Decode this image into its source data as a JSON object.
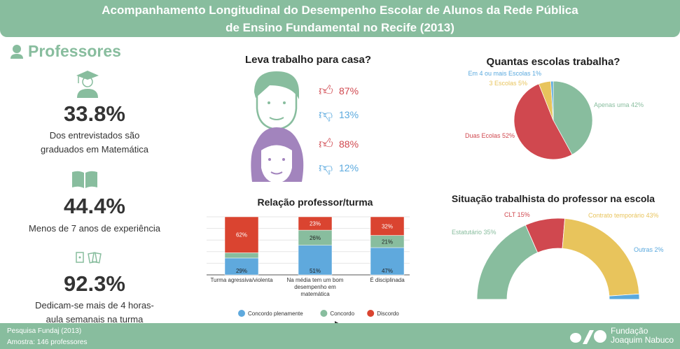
{
  "header": {
    "title_line1": "Acompanhamento Longitudinal do Desempenho Escolar de Alunos da Rede Pública",
    "title_line2": "de Ensino Fundamental no Recife (2013)"
  },
  "section": {
    "title": "Professores",
    "icon": "person-icon"
  },
  "stats": [
    {
      "value": "33.8%",
      "desc": "Dos entrevistados são graduados em Matemática",
      "icon": "graduate-icon"
    },
    {
      "value": "44.4%",
      "desc": "Menos de 7 anos de experiência",
      "icon": "book-icon"
    },
    {
      "value": "92.3%",
      "desc": "Dedicam-se mais de 4 horas-aula semanais na turma",
      "icon": "cards-icon"
    }
  ],
  "homework": {
    "title": "Leva trabalho para casa?",
    "male": {
      "yes": "87%",
      "no": "13%"
    },
    "female": {
      "yes": "88%",
      "no": "12%"
    },
    "colors": {
      "yes": "#d0484f",
      "no": "#5aa9de"
    }
  },
  "chart_data": [
    {
      "type": "bar",
      "stacked": true,
      "title": "Relação professor/turma",
      "categories": [
        "Turma agressiva/violenta",
        "Na média tem um bom desempenho em matemática",
        "É disciplinada"
      ],
      "series": [
        {
          "name": "Concordo plenamente",
          "values": [
            29,
            51,
            47
          ],
          "labels": [
            "29%",
            "51%",
            "47%"
          ],
          "color": "#5fa9dd"
        },
        {
          "name": "Concordo",
          "values": [
            9,
            26,
            21
          ],
          "labels": [
            "",
            "26%",
            "21%"
          ],
          "color": "#88bd9e"
        },
        {
          "name": "Discordo",
          "values": [
            62,
            23,
            32
          ],
          "labels": [
            "62%",
            "23%",
            "32%"
          ],
          "color": "#da4430"
        }
      ],
      "ylim": [
        0,
        100
      ],
      "grid": true,
      "legend": "bottom"
    },
    {
      "type": "pie",
      "title": "Quantas escolas trabalha?",
      "slices": [
        {
          "label": "Apenas uma 42%",
          "value": 42,
          "color": "#88bd9e"
        },
        {
          "label": "Duas Ecolas 52%",
          "value": 52,
          "color": "#d0484f"
        },
        {
          "label": "3 Escolas 5%",
          "value": 5,
          "color": "#e8c45c"
        },
        {
          "label": "Em 4 ou mais Escolas 1%",
          "value": 1,
          "color": "#5aa9de"
        }
      ]
    },
    {
      "type": "pie",
      "variant": "half-donut",
      "title": "Situação trabalhista do professor na escola",
      "slices": [
        {
          "label": "Estatutário 35%",
          "value": 35,
          "color": "#88bd9e"
        },
        {
          "label": "CLT 15%",
          "value": 15,
          "color": "#d0484f"
        },
        {
          "label": "Contrato temporário 43%",
          "value": 43,
          "color": "#e8c45c"
        },
        {
          "label": "Outras 2%",
          "value": 2,
          "color": "#5aa9de"
        }
      ]
    }
  ],
  "footer": {
    "line1": "Pesquisa Fundaj (2013)",
    "line2": "Amostra: 146 professores",
    "logo": "Fundação Joaquim Nabuco",
    "logo_line1": "Fundação",
    "logo_line2": "Joaquim Nabuco"
  }
}
